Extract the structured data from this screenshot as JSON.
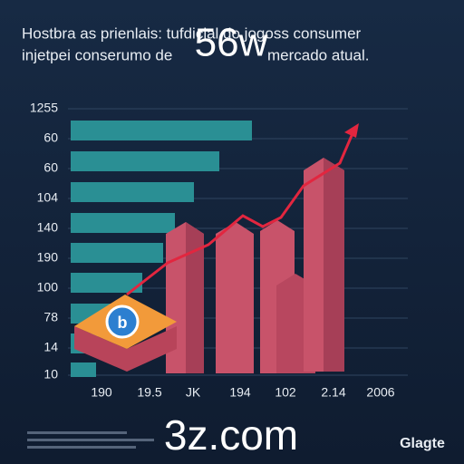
{
  "header": {
    "title_lines": [
      "Hostbra as prienlais: tufdicial do jogoss consumer",
      "injetpei conserumo de",
      "mercado atual."
    ],
    "overlay": "56w"
  },
  "y_labels": [
    "1255",
    "60",
    "60",
    "104",
    "140",
    "190",
    "100",
    "78",
    "14",
    "10"
  ],
  "x_labels": [
    "190",
    "19.5",
    "JK",
    "194",
    "102",
    "2.14",
    "2006"
  ],
  "badge": "b",
  "footer": {
    "watermark": "3z.com",
    "brand": "Glagte"
  }
}
